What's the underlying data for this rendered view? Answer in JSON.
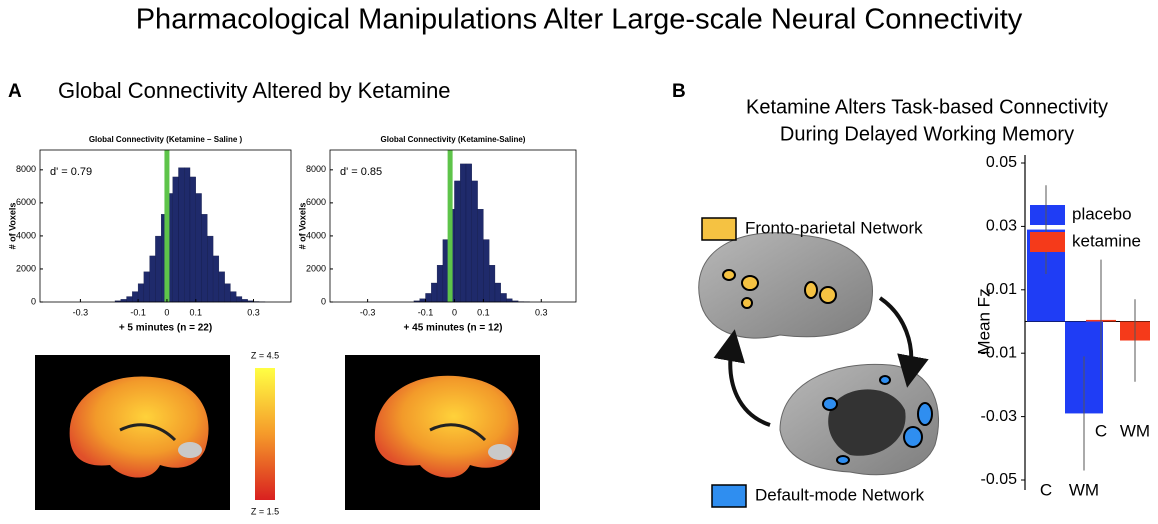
{
  "title": "Pharmacological Manipulations Alter Large-scale Neural Connectivity",
  "panels": [
    {
      "label": "A",
      "title_lines": [
        "Global Connectivity Altered by Ketamine"
      ]
    },
    {
      "label": "B",
      "title_lines": [
        "Ketamine Alters Task-based Connectivity",
        "During Delayed Working Memory"
      ]
    }
  ],
  "colorbar": {
    "max_label": "Z = 4.5",
    "min_label": "Z = 1.5"
  },
  "networks": [
    "Fronto-parietal Network",
    "Default-mode Network"
  ],
  "chart_data": [
    {
      "type": "histogram",
      "title": "Global Connectivity (Ketamine – Saline )",
      "y_label": "# of Voxels",
      "x_label": "+ 5 minutes (n = 22)",
      "annotation": "d' = 0.79",
      "color": "#1f2a6b",
      "marker": {
        "x": 0,
        "color": "#5ec44a"
      },
      "bins": [
        -0.18,
        -0.16,
        -0.14,
        -0.12,
        -0.1,
        -0.08,
        -0.06,
        -0.04,
        -0.02,
        0,
        0.02,
        0.04,
        0.06,
        0.08,
        0.1,
        0.12,
        0.14,
        0.16,
        0.18,
        0.2,
        0.22,
        0.24,
        0.26,
        0.28,
        0.3,
        0.32,
        0.34
      ],
      "values": [
        75,
        160,
        330,
        630,
        1110,
        1830,
        2790,
        3990,
        5310,
        6570,
        7570,
        8130,
        8130,
        7570,
        6570,
        5310,
        3990,
        2790,
        1830,
        1110,
        630,
        330,
        160,
        75,
        30,
        10
      ],
      "xlim": [
        -0.44,
        0.43
      ],
      "xticks": [
        -0.3,
        -0.1,
        0,
        0.1,
        0.3
      ],
      "ylim": [
        0,
        9200
      ],
      "yticks": [
        0,
        2000,
        4000,
        6000,
        8000
      ]
    },
    {
      "type": "histogram",
      "title": "Global Connectivity (Ketamine-Saline)",
      "y_label": "# of Voxels",
      "x_label": "+ 45 minutes (n = 12)",
      "annotation": "d' = 0.85",
      "color": "#1f2a6b",
      "marker": {
        "x": -0.015,
        "color": "#5ec44a"
      },
      "bins": [
        -0.14,
        -0.12,
        -0.1,
        -0.08,
        -0.06,
        -0.04,
        -0.02,
        0,
        0.02,
        0.04,
        0.06,
        0.08,
        0.1,
        0.12,
        0.14,
        0.16,
        0.18,
        0.2,
        0.22,
        0.24,
        0.26
      ],
      "values": [
        70,
        200,
        520,
        1150,
        2230,
        3780,
        5620,
        7330,
        8360,
        8360,
        7330,
        5620,
        3780,
        2230,
        1150,
        520,
        200,
        70,
        25,
        10
      ],
      "xlim": [
        -0.43,
        0.42
      ],
      "xticks": [
        -0.3,
        -0.1,
        0,
        0.1,
        0.3
      ],
      "ylim": [
        0,
        9200
      ],
      "yticks": [
        0,
        2000,
        4000,
        6000,
        8000
      ]
    },
    {
      "type": "bar",
      "y_label": "Mean Fz",
      "categories": [
        "C",
        "WM"
      ],
      "series": [
        {
          "name": "placebo",
          "color": "#1f3df5",
          "values": [
            0.029,
            -0.029
          ],
          "errors": [
            0.014,
            0.018
          ]
        },
        {
          "name": "ketamine",
          "color": "#f53a1a",
          "values": [
            0.0005,
            -0.006
          ],
          "errors": [
            0.019,
            0.013
          ]
        }
      ],
      "ylim": [
        -0.05,
        0.05
      ],
      "yticks": [
        -0.05,
        -0.03,
        -0.01,
        0.01,
        0.03,
        0.05
      ]
    }
  ]
}
